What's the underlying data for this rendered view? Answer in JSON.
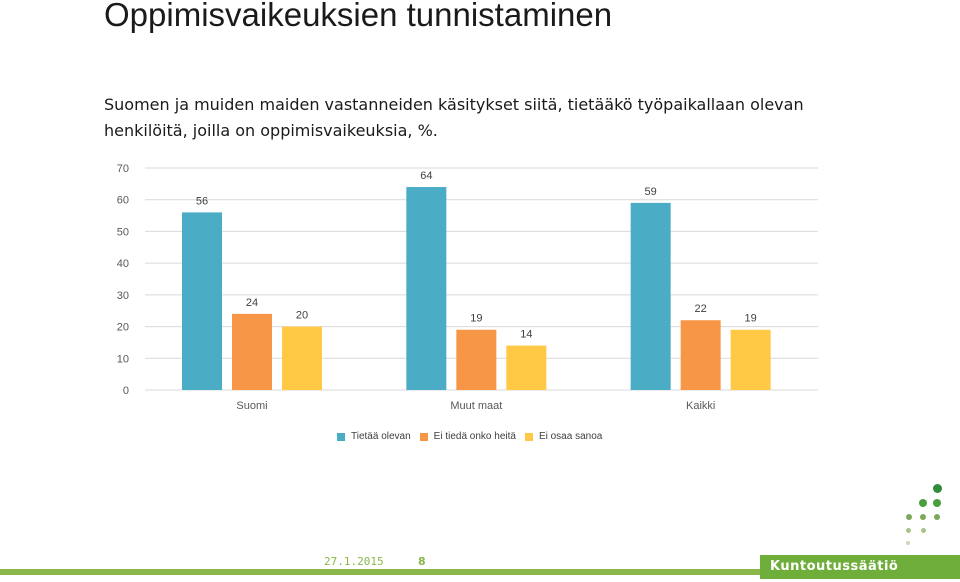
{
  "slide": {
    "title": "Oppimisvaikeuksien tunnistaminen",
    "subtitle_line1": "Suomen ja muiden maiden vastanneiden käsitykset siitä, tietääkö työpaikallaan olevan",
    "subtitle_line2": "henkilöitä, joilla on oppimisvaikeuksia, %."
  },
  "chart_data": {
    "type": "bar",
    "categories": [
      "Suomi",
      "Muut maat",
      "Kaikki"
    ],
    "series": [
      {
        "name": "Tietää olevan",
        "values": [
          56,
          64,
          59
        ],
        "color": "#4bacc6"
      },
      {
        "name": "Ei tiedä onko heitä",
        "values": [
          24,
          19,
          22
        ],
        "color": "#f79646"
      },
      {
        "name": "Ei osaa sanoa",
        "values": [
          20,
          14,
          19
        ],
        "color": "#ffc845"
      }
    ],
    "ylim": [
      0,
      70
    ],
    "yticks": [
      0,
      10,
      20,
      30,
      40,
      50,
      60,
      70
    ],
    "grid": true,
    "legend": "bottom"
  },
  "footer": {
    "date": "27.1.2015",
    "page": "8",
    "brand": "Kuntoutussäätiö",
    "brand_color": "#6fae3a",
    "accent_color": "#8ab64a"
  }
}
